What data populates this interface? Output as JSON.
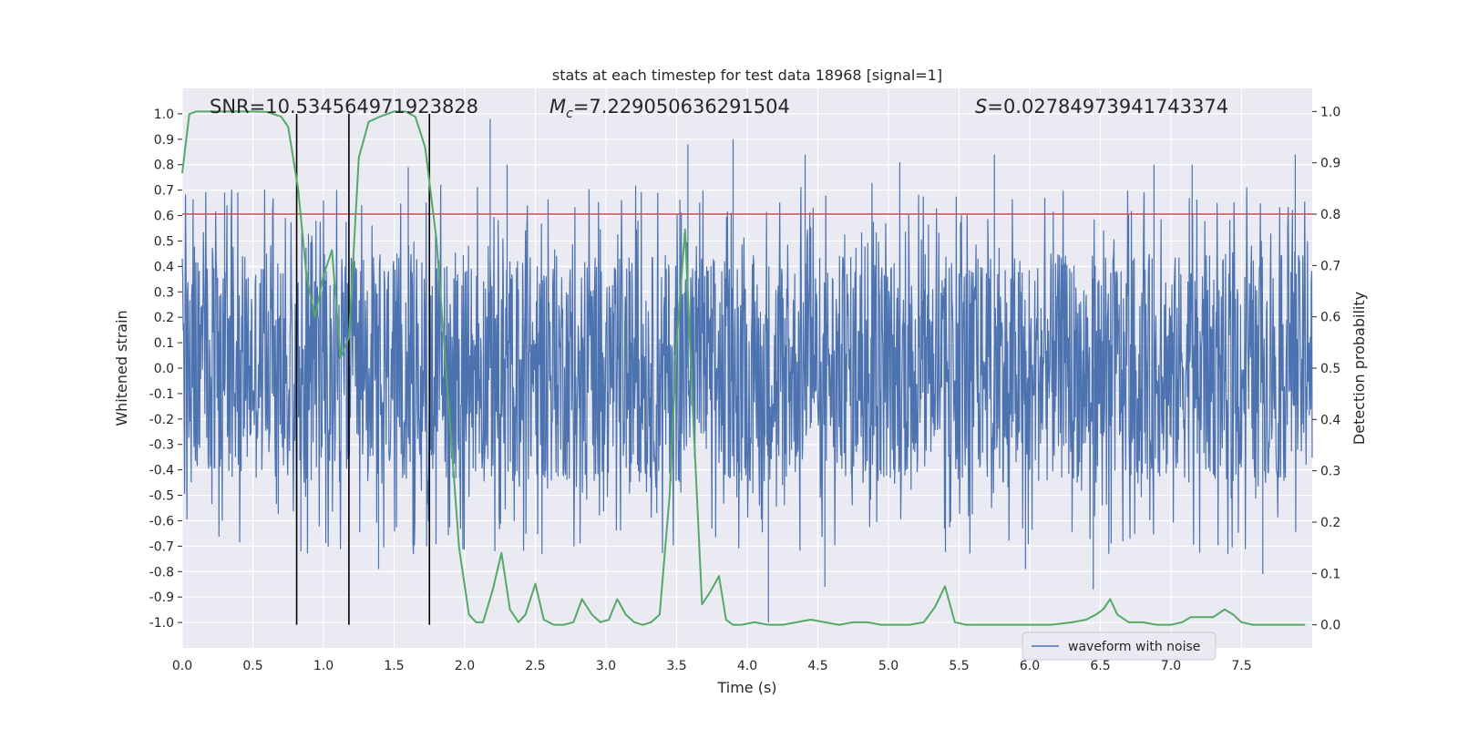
{
  "chart_data": {
    "type": "line",
    "title": "stats at each timestep for test data 18968 [signal=1]",
    "xlabel": "Time (s)",
    "ylabel": "Whitened strain",
    "y2label": "Detection probability",
    "xlim": [
      0.0,
      8.0
    ],
    "ylim": [
      -1.1,
      1.1
    ],
    "y2lim": [
      -0.045,
      1.045
    ],
    "xticks": [
      0.0,
      0.5,
      1.0,
      1.5,
      2.0,
      2.5,
      3.0,
      3.5,
      4.0,
      4.5,
      5.0,
      5.5,
      6.0,
      6.5,
      7.0,
      7.5
    ],
    "xtick_labels": [
      "0.0",
      "0.5",
      "1.0",
      "1.5",
      "2.0",
      "2.5",
      "3.0",
      "3.5",
      "4.0",
      "4.5",
      "5.0",
      "5.5",
      "6.0",
      "6.5",
      "7.0",
      "7.5"
    ],
    "yticks": [
      1.0,
      0.9,
      0.8,
      0.7,
      0.6,
      0.5,
      0.4,
      0.3,
      0.2,
      0.1,
      0.0,
      -0.1,
      -0.2,
      -0.3,
      -0.4,
      -0.5,
      -0.6,
      -0.7,
      -0.8,
      -0.9,
      -1.0
    ],
    "ytick_labels": [
      "1.0",
      "0.9",
      "0.8",
      "0.7",
      "0.6",
      "0.5",
      "0.4",
      "0.3",
      "0.2",
      "0.1",
      "0.0",
      "-0.1",
      "-0.2",
      "-0.3",
      "-0.4",
      "-0.5",
      "-0.6",
      "-0.7",
      "-0.8",
      "-0.9",
      "-1.0"
    ],
    "y2ticks": [
      1.0,
      0.9,
      0.8,
      0.7,
      0.6,
      0.5,
      0.4,
      0.3,
      0.2,
      0.1,
      0.0
    ],
    "y2tick_labels": [
      "1.0",
      "0.9",
      "0.8",
      "0.7",
      "0.6",
      "0.5",
      "0.4",
      "0.3",
      "0.2",
      "0.1",
      "0.0"
    ],
    "annotations": {
      "snr": "SNR=10.534564971923828",
      "mc_symbol": "M",
      "mc_subscript": "c",
      "mc_value": "=7.229050636291504",
      "s_symbol": "S",
      "s_value": "=0.027849739417433​74"
    },
    "threshold": {
      "value": 0.8,
      "color": "#c44e52"
    },
    "event_lines": [
      0.81,
      1.18,
      1.75
    ],
    "waveform": {
      "name": "waveform with noise",
      "color": "#4c72b0",
      "typical_amplitude": 0.45,
      "peaks": [
        {
          "t": 0.3,
          "v": 0.69
        },
        {
          "t": 0.84,
          "v": -0.72
        },
        {
          "t": 1.18,
          "v": -0.62
        },
        {
          "t": 1.39,
          "v": -0.79
        },
        {
          "t": 1.6,
          "v": 0.79
        },
        {
          "t": 1.73,
          "v": -0.7
        },
        {
          "t": 2.18,
          "v": 0.98
        },
        {
          "t": 2.3,
          "v": 0.8
        },
        {
          "t": 3.58,
          "v": 0.88
        },
        {
          "t": 3.9,
          "v": 0.9
        },
        {
          "t": 4.15,
          "v": -1.0
        },
        {
          "t": 4.41,
          "v": 0.84
        },
        {
          "t": 4.55,
          "v": -0.86
        },
        {
          "t": 5.08,
          "v": 0.81
        },
        {
          "t": 5.75,
          "v": 0.84
        },
        {
          "t": 5.97,
          "v": -0.79
        },
        {
          "t": 6.45,
          "v": -0.87
        },
        {
          "t": 6.88,
          "v": 0.8
        },
        {
          "t": 7.15,
          "v": 0.8
        },
        {
          "t": 7.65,
          "v": -0.81
        },
        {
          "t": 7.88,
          "v": 0.84
        }
      ]
    },
    "probability": {
      "color": "#55a868",
      "t": [
        0.0,
        0.05,
        0.1,
        0.2,
        0.3,
        0.4,
        0.5,
        0.6,
        0.7,
        0.75,
        0.82,
        0.88,
        0.94,
        1.0,
        1.06,
        1.12,
        1.18,
        1.25,
        1.32,
        1.4,
        1.5,
        1.58,
        1.65,
        1.72,
        1.8,
        1.88,
        1.96,
        2.03,
        2.08,
        2.13,
        2.2,
        2.26,
        2.32,
        2.38,
        2.43,
        2.5,
        2.56,
        2.63,
        2.7,
        2.77,
        2.83,
        2.9,
        2.96,
        3.02,
        3.08,
        3.14,
        3.2,
        3.26,
        3.32,
        3.38,
        3.45,
        3.5,
        3.56,
        3.62,
        3.68,
        3.74,
        3.8,
        3.85,
        3.9,
        3.96,
        4.05,
        4.15,
        4.25,
        4.35,
        4.45,
        4.55,
        4.65,
        4.75,
        4.85,
        4.95,
        5.05,
        5.15,
        5.25,
        5.33,
        5.4,
        5.47,
        5.55,
        5.7,
        5.85,
        6.0,
        6.15,
        6.3,
        6.4,
        6.47,
        6.52,
        6.57,
        6.62,
        6.7,
        6.8,
        6.9,
        7.0,
        7.08,
        7.14,
        7.2,
        7.3,
        7.38,
        7.44,
        7.5,
        7.58,
        7.7,
        7.85,
        7.95
      ],
      "values": [
        0.88,
        0.995,
        1.0,
        1.0,
        1.0,
        1.0,
        1.0,
        0.999,
        0.99,
        0.97,
        0.85,
        0.68,
        0.6,
        0.68,
        0.73,
        0.52,
        0.56,
        0.91,
        0.98,
        0.99,
        1.0,
        1.0,
        0.99,
        0.93,
        0.75,
        0.45,
        0.15,
        0.02,
        0.005,
        0.005,
        0.07,
        0.14,
        0.03,
        0.005,
        0.02,
        0.08,
        0.01,
        0.0,
        0.0,
        0.005,
        0.05,
        0.02,
        0.005,
        0.01,
        0.05,
        0.02,
        0.005,
        0.0,
        0.005,
        0.02,
        0.25,
        0.55,
        0.77,
        0.39,
        0.04,
        0.065,
        0.095,
        0.01,
        0.0,
        0.0,
        0.005,
        0.0,
        0.0,
        0.005,
        0.01,
        0.005,
        0.0,
        0.005,
        0.005,
        0.0,
        0.0,
        0.0,
        0.005,
        0.035,
        0.075,
        0.005,
        0.0,
        0.0,
        0.0,
        0.0,
        0.0,
        0.005,
        0.01,
        0.02,
        0.03,
        0.05,
        0.02,
        0.005,
        0.005,
        0.0,
        0.0,
        0.005,
        0.015,
        0.015,
        0.015,
        0.03,
        0.02,
        0.005,
        0.0,
        0.0,
        0.0,
        0.0
      ]
    },
    "legend": {
      "location": "lower-right",
      "entries": [
        "waveform with noise"
      ]
    },
    "style": {
      "background": "#eaeaf2",
      "grid": true,
      "grid_color": "#ffffff"
    }
  }
}
